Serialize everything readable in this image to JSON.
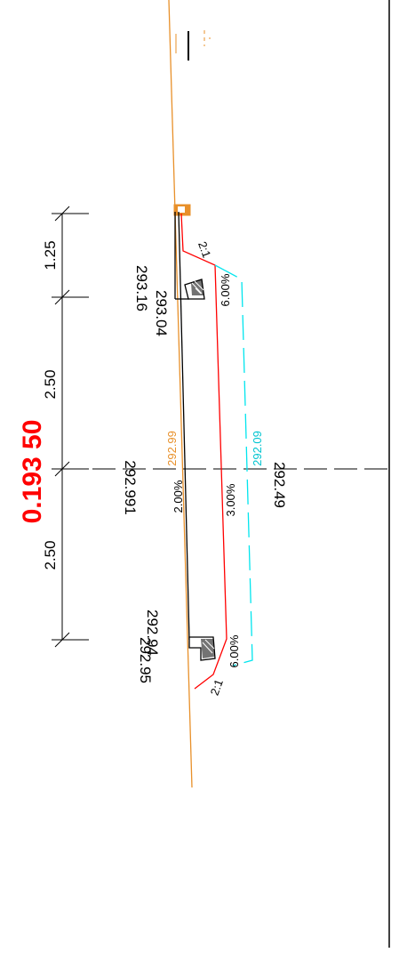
{
  "station": "0.193 50",
  "offsets": {
    "top": "1.25",
    "upper": "2.50",
    "lower": "2.50"
  },
  "elevations": {
    "curb_top_left": "293.16",
    "curb_bottom_left": "293.04",
    "centerline": "292.991",
    "ground_center": "292.99",
    "curb_top_right": "292.94",
    "curb_bottom_right": "292.95",
    "subgrade_center": "292.49",
    "subbase_center": "292.09"
  },
  "slopes": {
    "left_side": "2:1",
    "right_side": "2:1",
    "left_shoulder": "6.00%",
    "right_shoulder": "6.00%",
    "cross_slope": "2.00%",
    "subgrade": "3.00%"
  },
  "colors": {
    "background": "#ffffff",
    "ground": "#e8902a",
    "design": "#000000",
    "subgrade": "#ff0000",
    "subbase": "#00e5ee",
    "station": "#ff0000"
  }
}
